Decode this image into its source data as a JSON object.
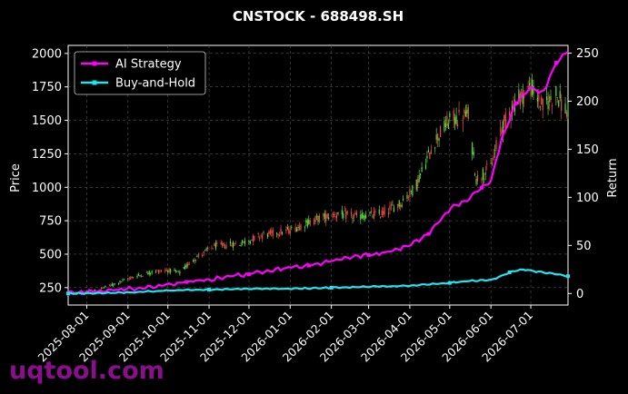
{
  "chart_data": {
    "type": "candlestick+line",
    "title": "CNSTOCK - 688498.SH",
    "ylabel_left": "Price",
    "ylabel_right": "Return",
    "ylim_left": [
      120,
      2060
    ],
    "ylim_right": [
      -12,
      258
    ],
    "yticks_left": [
      250,
      500,
      750,
      1000,
      1250,
      1500,
      1750,
      2000
    ],
    "yticks_right": [
      0,
      50,
      100,
      150,
      200,
      250
    ],
    "xlim": [
      "2025-07-18",
      "2026-07-29"
    ],
    "xticks": [
      "2025-08-01",
      "2025-09-01",
      "2025-10-01",
      "2025-11-01",
      "2025-12-01",
      "2026-01-01",
      "2026-02-01",
      "2026-03-01",
      "2026-04-01",
      "2026-05-01",
      "2026-06-01",
      "2026-07-01"
    ],
    "grid": true,
    "legend_position": "top-left",
    "colors": {
      "up": "#55e03c",
      "down": "#f04848",
      "ai_strategy": "#ff00ff",
      "buy_and_hold": "#1ee6f0",
      "watermark": "#8a0f8a"
    },
    "price_path": [
      {
        "date": "2025-07-18",
        "price": 200
      },
      {
        "date": "2025-08-05",
        "price": 220
      },
      {
        "date": "2025-08-20",
        "price": 270
      },
      {
        "date": "2025-09-05",
        "price": 330
      },
      {
        "date": "2025-09-20",
        "price": 370
      },
      {
        "date": "2025-10-01",
        "price": 380
      },
      {
        "date": "2025-10-10",
        "price": 360
      },
      {
        "date": "2025-10-20",
        "price": 460
      },
      {
        "date": "2025-11-05",
        "price": 560
      },
      {
        "date": "2025-11-25",
        "price": 580
      },
      {
        "date": "2025-12-10",
        "price": 640
      },
      {
        "date": "2026-01-01",
        "price": 680
      },
      {
        "date": "2026-01-20",
        "price": 760
      },
      {
        "date": "2026-02-05",
        "price": 800
      },
      {
        "date": "2026-02-20",
        "price": 780
      },
      {
        "date": "2026-03-10",
        "price": 800
      },
      {
        "date": "2026-03-25",
        "price": 880
      },
      {
        "date": "2026-04-05",
        "price": 1000
      },
      {
        "date": "2026-04-20",
        "price": 1350
      },
      {
        "date": "2026-05-01",
        "price": 1500
      },
      {
        "date": "2026-05-15",
        "price": 1540
      },
      {
        "date": "2026-05-21",
        "price": 1060
      },
      {
        "date": "2026-06-01",
        "price": 1150
      },
      {
        "date": "2026-06-08",
        "price": 1420
      },
      {
        "date": "2026-06-20",
        "price": 1650
      },
      {
        "date": "2026-07-01",
        "price": 1750
      },
      {
        "date": "2026-07-10",
        "price": 1600
      },
      {
        "date": "2026-07-20",
        "price": 1700
      },
      {
        "date": "2026-07-29",
        "price": 1550
      }
    ],
    "series": [
      {
        "name": "AI Strategy",
        "axis": "right",
        "points": [
          {
            "date": "2025-07-18",
            "value": 0
          },
          {
            "date": "2025-08-15",
            "value": 3
          },
          {
            "date": "2025-09-15",
            "value": 6
          },
          {
            "date": "2025-10-15",
            "value": 12
          },
          {
            "date": "2025-11-01",
            "value": 14
          },
          {
            "date": "2025-11-15",
            "value": 18
          },
          {
            "date": "2025-12-01",
            "value": 20
          },
          {
            "date": "2025-12-15",
            "value": 24
          },
          {
            "date": "2026-01-01",
            "value": 27
          },
          {
            "date": "2026-01-15",
            "value": 29
          },
          {
            "date": "2026-02-01",
            "value": 34
          },
          {
            "date": "2026-02-15",
            "value": 38
          },
          {
            "date": "2026-03-01",
            "value": 40
          },
          {
            "date": "2026-03-15",
            "value": 43
          },
          {
            "date": "2026-04-01",
            "value": 50
          },
          {
            "date": "2026-04-15",
            "value": 62
          },
          {
            "date": "2026-05-01",
            "value": 88
          },
          {
            "date": "2026-05-15",
            "value": 98
          },
          {
            "date": "2026-05-25",
            "value": 110
          },
          {
            "date": "2026-06-01",
            "value": 118
          },
          {
            "date": "2026-06-10",
            "value": 165
          },
          {
            "date": "2026-06-20",
            "value": 198
          },
          {
            "date": "2026-07-01",
            "value": 215
          },
          {
            "date": "2026-07-10",
            "value": 208
          },
          {
            "date": "2026-07-20",
            "value": 240
          },
          {
            "date": "2026-07-29",
            "value": 252
          }
        ]
      },
      {
        "name": "Buy-and-Hold",
        "axis": "right",
        "points": [
          {
            "date": "2025-07-18",
            "value": 0
          },
          {
            "date": "2025-09-01",
            "value": 1
          },
          {
            "date": "2025-10-01",
            "value": 3
          },
          {
            "date": "2025-11-01",
            "value": 4
          },
          {
            "date": "2025-12-01",
            "value": 5
          },
          {
            "date": "2026-01-01",
            "value": 5
          },
          {
            "date": "2026-02-01",
            "value": 6
          },
          {
            "date": "2026-03-01",
            "value": 7
          },
          {
            "date": "2026-04-01",
            "value": 8
          },
          {
            "date": "2026-05-01",
            "value": 11
          },
          {
            "date": "2026-05-15",
            "value": 13
          },
          {
            "date": "2026-06-01",
            "value": 14
          },
          {
            "date": "2026-06-15",
            "value": 22
          },
          {
            "date": "2026-06-25",
            "value": 25
          },
          {
            "date": "2026-07-10",
            "value": 22
          },
          {
            "date": "2026-07-29",
            "value": 18
          }
        ]
      }
    ]
  },
  "watermark": "uqtool.com"
}
